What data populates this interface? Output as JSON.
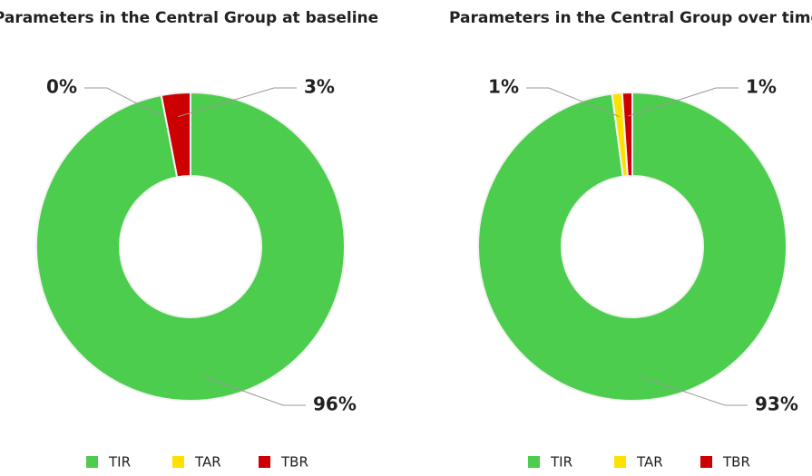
{
  "chart_data": [
    {
      "type": "pie",
      "title": "Parameters in the Central Group at baseline",
      "categories": [
        "TIR",
        "TAR",
        "TBR"
      ],
      "values": [
        96,
        0,
        3
      ],
      "value_labels": [
        "96%",
        "0%",
        "3%"
      ],
      "colors": [
        "#4dcd4d",
        "#ffe100",
        "#cc0000"
      ],
      "legend": "bottom"
    },
    {
      "type": "pie",
      "title": "Parameters in the Central Group over time",
      "categories": [
        "TIR",
        "TAR",
        "TBR"
      ],
      "values": [
        93,
        1,
        1
      ],
      "value_labels": [
        "93%",
        "1%",
        "1%"
      ],
      "colors": [
        "#4dcd4d",
        "#ffe100",
        "#cc0000"
      ],
      "legend": "bottom"
    }
  ]
}
